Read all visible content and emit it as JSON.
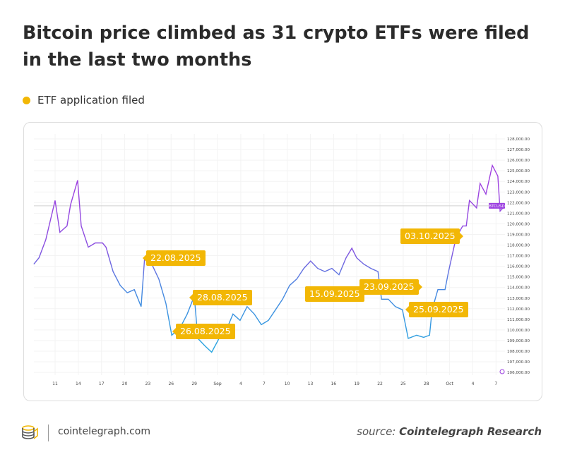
{
  "header": {
    "title": "Bitcoin price climbed as 31 crypto ETFs were filed in the last two months"
  },
  "legend": {
    "label": "ETF application filed",
    "color": "#f2b705"
  },
  "chart_data": {
    "type": "line",
    "title": "Bitcoin price climbed as 31 crypto ETFs were filed in the last two months",
    "series": [
      {
        "name": "BTCUSD",
        "points": [
          [
            "2025-08-08T06:00",
            116200
          ],
          [
            "2025-08-08T22:00",
            116800
          ],
          [
            "2025-08-09T19:00",
            118500
          ],
          [
            "2025-08-11T00:00",
            122200
          ],
          [
            "2025-08-11T15:00",
            119200
          ],
          [
            "2025-08-12T13:00",
            119800
          ],
          [
            "2025-08-13T00:00",
            121800
          ],
          [
            "2025-08-13T22:00",
            124100
          ],
          [
            "2025-08-14T09:00",
            119800
          ],
          [
            "2025-08-15T07:00",
            117800
          ],
          [
            "2025-08-16T05:00",
            118200
          ],
          [
            "2025-08-17T03:00",
            118200
          ],
          [
            "2025-08-17T14:00",
            117800
          ],
          [
            "2025-08-18T12:00",
            115500
          ],
          [
            "2025-08-19T10:00",
            114200
          ],
          [
            "2025-08-20T08:00",
            113500
          ],
          [
            "2025-08-21T06:00",
            113800
          ],
          [
            "2025-08-22T03:00",
            112200
          ],
          [
            "2025-08-22T14:00",
            116800
          ],
          [
            "2025-08-23T12:00",
            116200
          ],
          [
            "2025-08-24T10:00",
            114800
          ],
          [
            "2025-08-25T08:00",
            112500
          ],
          [
            "2025-08-26T02:00",
            109500
          ],
          [
            "2025-08-27T04:00",
            110200
          ],
          [
            "2025-08-28T02:00",
            111500
          ],
          [
            "2025-08-29T00:00",
            113200
          ],
          [
            "2025-08-29T11:00",
            109200
          ],
          [
            "2025-08-30T09:00",
            108500
          ],
          [
            "2025-08-31T06:00",
            107900
          ],
          [
            "2025-09-01T05:00",
            109200
          ],
          [
            "2025-09-02T02:00",
            109900
          ],
          [
            "2025-09-03T00:00",
            111500
          ],
          [
            "2025-09-03T22:00",
            110900
          ],
          [
            "2025-09-04T20:00",
            112200
          ],
          [
            "2025-09-05T18:00",
            111500
          ],
          [
            "2025-09-06T16:00",
            110500
          ],
          [
            "2025-09-07T14:00",
            110900
          ],
          [
            "2025-09-08T12:00",
            111900
          ],
          [
            "2025-09-09T10:00",
            112900
          ],
          [
            "2025-09-10T08:00",
            114200
          ],
          [
            "2025-09-11T06:00",
            114800
          ],
          [
            "2025-09-12T04:00",
            115800
          ],
          [
            "2025-09-13T01:00",
            116500
          ],
          [
            "2025-09-13T23:00",
            115800
          ],
          [
            "2025-09-14T21:00",
            115500
          ],
          [
            "2025-09-15T19:00",
            115800
          ],
          [
            "2025-09-16T17:00",
            115200
          ],
          [
            "2025-09-17T15:00",
            116800
          ],
          [
            "2025-09-18T09:00",
            117700
          ],
          [
            "2025-09-19T00:00",
            116800
          ],
          [
            "2025-09-19T22:00",
            116200
          ],
          [
            "2025-09-20T20:00",
            115800
          ],
          [
            "2025-09-21T18:00",
            115500
          ],
          [
            "2025-09-22T05:00",
            112900
          ],
          [
            "2025-09-23T02:00",
            112900
          ],
          [
            "2025-09-24T00:00",
            112200
          ],
          [
            "2025-09-24T22:00",
            111900
          ],
          [
            "2025-09-25T16:00",
            109200
          ],
          [
            "2025-09-26T18:00",
            109500
          ],
          [
            "2025-09-27T16:00",
            109300
          ],
          [
            "2025-09-28T10:00",
            109500
          ],
          [
            "2025-09-28T18:00",
            111900
          ],
          [
            "2025-09-29T12:00",
            113800
          ],
          [
            "2025-09-30T10:00",
            113800
          ],
          [
            "2025-09-30T21:00",
            115500
          ],
          [
            "2025-10-01T19:00",
            118500
          ],
          [
            "2025-10-02T06:00",
            119200
          ],
          [
            "2025-10-02T17:00",
            119800
          ],
          [
            "2025-10-03T04:00",
            119800
          ],
          [
            "2025-10-03T14:00",
            122200
          ],
          [
            "2025-10-04T12:00",
            121500
          ],
          [
            "2025-10-04T23:00",
            123800
          ],
          [
            "2025-10-05T17:00",
            122800
          ],
          [
            "2025-10-06T13:00",
            125500
          ],
          [
            "2025-10-07T06:00",
            124500
          ],
          [
            "2025-10-07T13:00",
            121200
          ],
          [
            "2025-10-07T22:00",
            121500
          ]
        ]
      }
    ],
    "current_price_label": "BTCUSD",
    "current_price": 121700,
    "x_ticks": [
      "11",
      "14",
      "17",
      "20",
      "23",
      "26",
      "29",
      "Sep",
      "4",
      "7",
      "10",
      "13",
      "16",
      "19",
      "22",
      "25",
      "28",
      "Oct",
      "4",
      "7"
    ],
    "y_ticks": [
      "128,000.00",
      "127,000.00",
      "126,000.00",
      "125,000.00",
      "124,000.00",
      "123,000.00",
      "122,000.00",
      "121,000.00",
      "120,000.00",
      "119,000.00",
      "118,000.00",
      "117,000.00",
      "116,000.00",
      "115,000.00",
      "114,000.00",
      "113,000.00",
      "112,000.00",
      "111,000.00",
      "110,000.00",
      "109,000.00",
      "108,000.00",
      "107,000.00",
      "106,000.00"
    ],
    "ylim": [
      106000,
      128000
    ],
    "xlim": [
      "2025-08-08",
      "2025-10-08"
    ],
    "grid": true,
    "line_colors": {
      "high": "#a040e0",
      "low": "#27a6e0"
    },
    "annotations": [
      {
        "label": "22.08.2025"
      },
      {
        "label": "26.08.2025"
      },
      {
        "label": "28.08.2025"
      },
      {
        "label": "15.09.2025"
      },
      {
        "label": "23.09.2025"
      },
      {
        "label": "25.09.2025"
      },
      {
        "label": "03.10.2025"
      }
    ]
  },
  "footer": {
    "site": "cointelegraph.com",
    "source_prefix": "source:",
    "source_name": "Cointelegraph Research"
  }
}
